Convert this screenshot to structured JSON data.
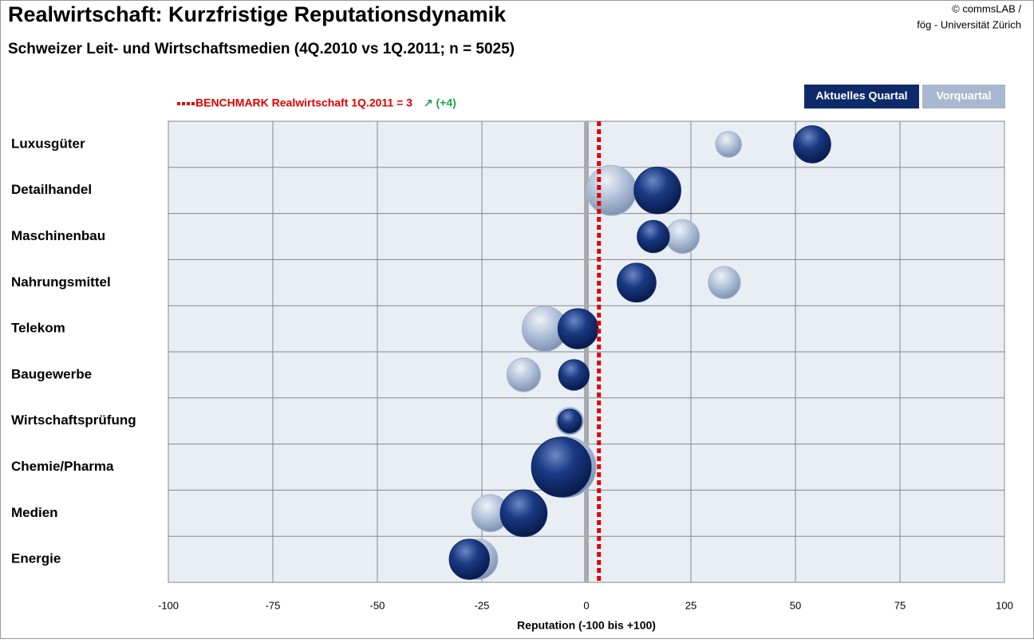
{
  "chart_data": {
    "type": "bubble",
    "title": "Realwirtschaft: Kurzfristige Reputationsdynamik",
    "subtitle": "Schweizer Leit- und Wirtschaftsmedien  (4Q.2010 vs 1Q.2011; n = 5025)",
    "source": [
      "© commsLAB /",
      "fög - Universität Zürich"
    ],
    "x_label": "Reputation (-100 bis +100)",
    "categories": [
      "Luxusgüter",
      "Detailhandel",
      "Maschinenbau",
      "Nahrungsmittel",
      "Telekom",
      "Baugewerbe",
      "Wirtschaftsprüfung",
      "Chemie/Pharma",
      "Medien",
      "Energie"
    ],
    "series": [
      {
        "name": "Vorquartal",
        "color": "#a8b8d0",
        "values": [
          34,
          6,
          23,
          33,
          -10,
          -15,
          -4,
          -5,
          -23,
          -26
        ],
        "sizes": [
          26,
          96,
          44,
          40,
          78,
          44,
          29,
          144,
          53,
          62
        ]
      },
      {
        "name": "Aktuelles Quartal",
        "color": "#0f2a6a",
        "values": [
          54,
          17,
          16,
          12,
          -2,
          -3,
          -4,
          -6,
          -15,
          -28
        ],
        "sizes": [
          53,
          84,
          40,
          58,
          62,
          36,
          22,
          137,
          84,
          62
        ]
      }
    ],
    "benchmark": {
      "value": 3,
      "label": "BENCHMARK Realwirtschaft 1Q.2011 = 3",
      "change": "↗ (+4)",
      "color": "#e00000"
    },
    "xlim": [
      -100,
      100
    ],
    "xticks": [
      -100,
      -75,
      -50,
      -25,
      0,
      25,
      50,
      75,
      100
    ],
    "grid": true
  }
}
